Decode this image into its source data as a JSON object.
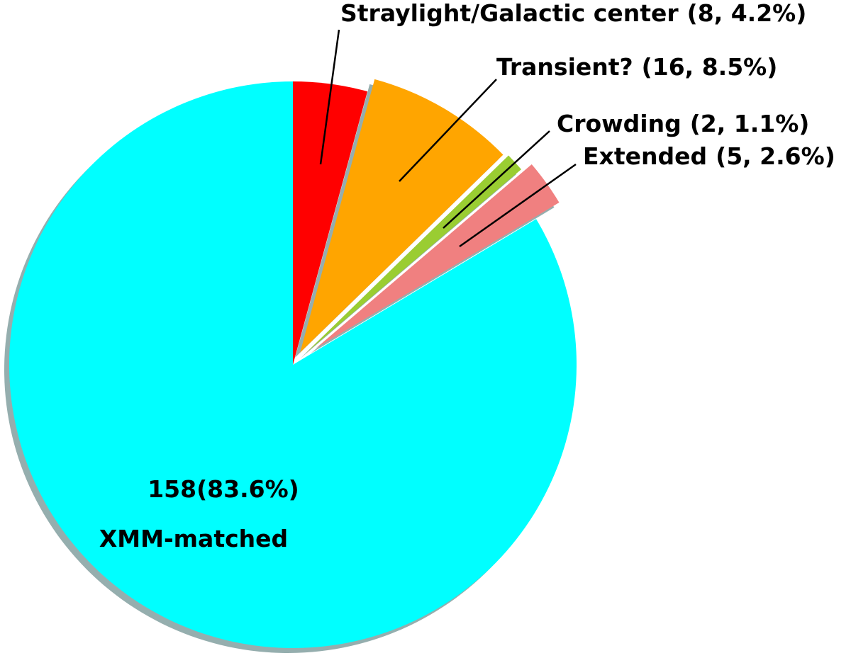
{
  "chart_data": {
    "type": "pie",
    "categories": [
      "Straylight/Galactic center",
      "Transient?",
      "Crowding",
      "Extended",
      "XMM-matched"
    ],
    "values": [
      8,
      16,
      2,
      5,
      158
    ],
    "value_labels": [
      "(8, 4.2%)",
      "(16,  8.5%)",
      "(2, 1.1%)",
      "(5, 2.6%)",
      "158(83.6%)"
    ],
    "colors": [
      "#ff0000",
      "#ffa500",
      "#9acd32",
      "#f08080",
      "#00ffff"
    ],
    "explode": [
      0,
      0.05,
      0.06,
      0.1,
      0
    ],
    "start_angle": 90,
    "counterclock": false,
    "shadow": true
  }
}
